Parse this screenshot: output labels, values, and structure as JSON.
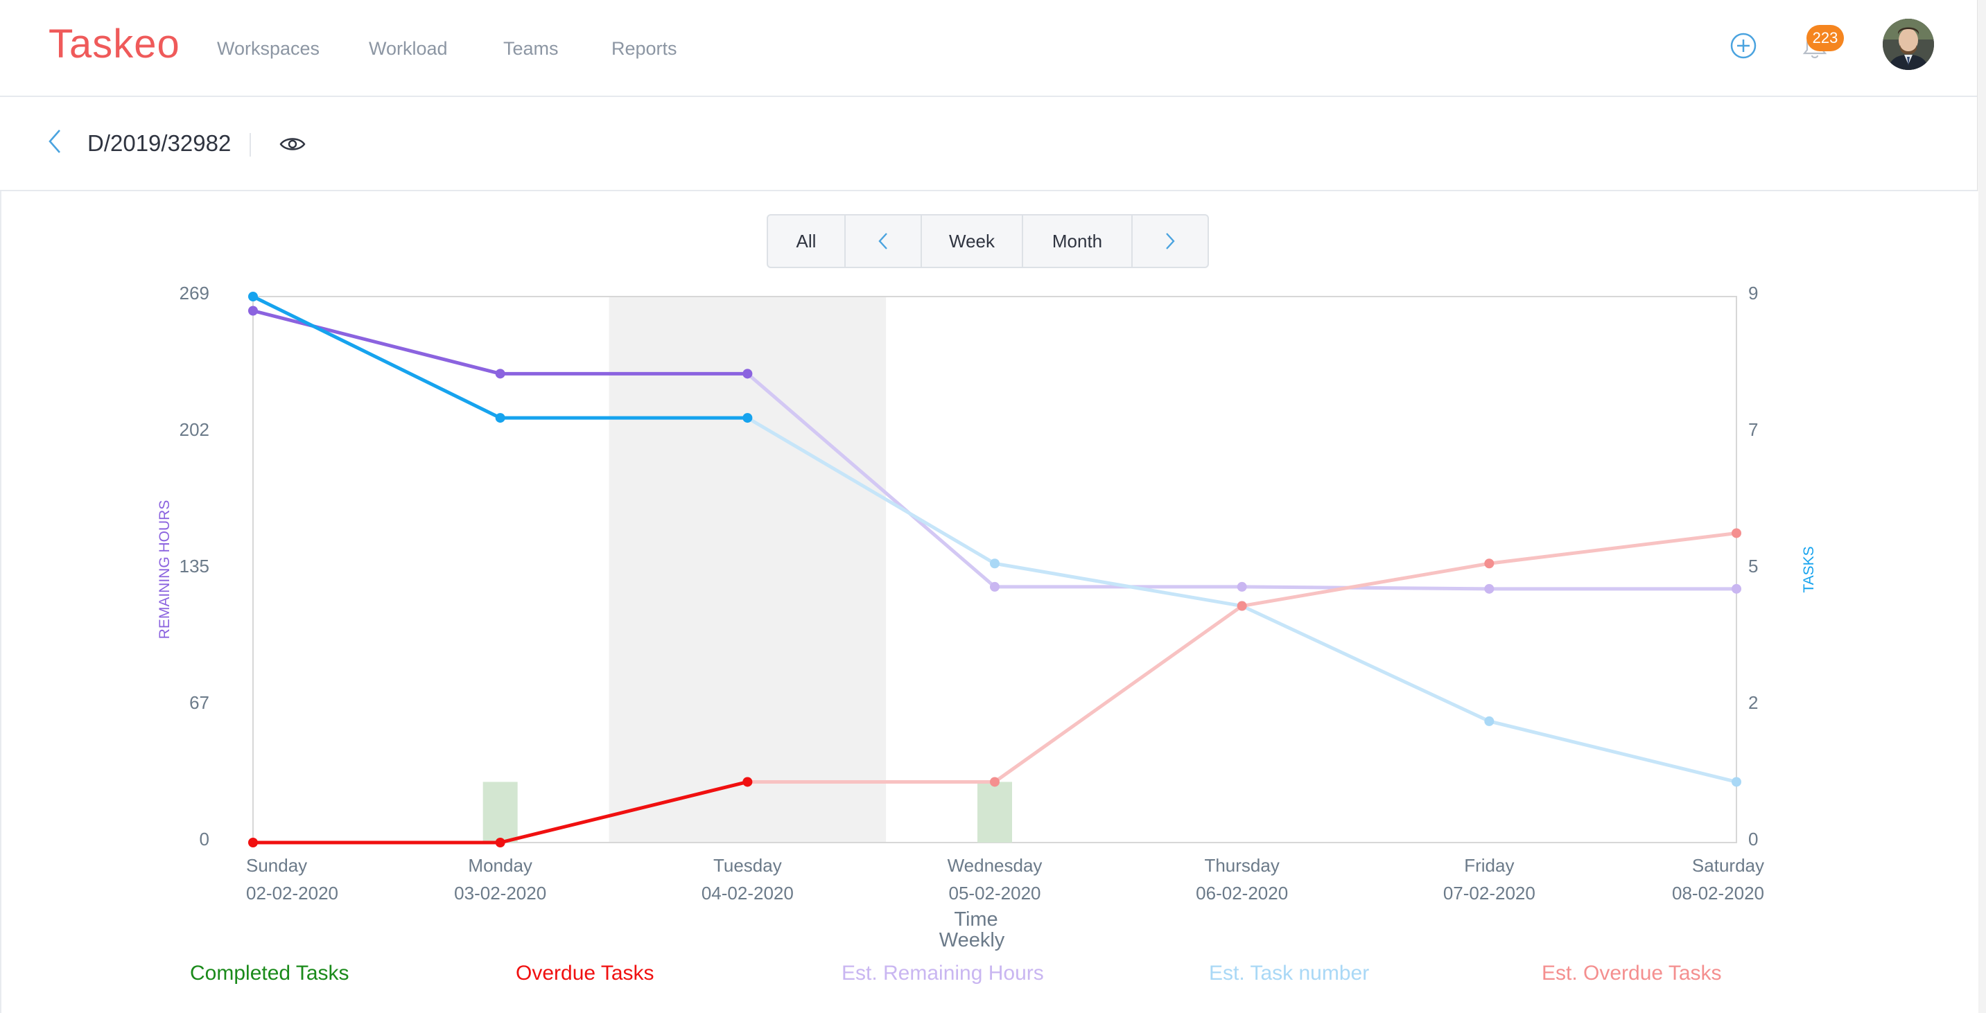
{
  "app": {
    "logo": "Taskeo",
    "nav": [
      {
        "label": "Workspaces"
      },
      {
        "label": "Workload"
      },
      {
        "label": "Teams"
      },
      {
        "label": "Reports"
      }
    ],
    "notifications_count": "223",
    "accent_color": "#4aa3df",
    "brand_color": "#ef5a5a",
    "badge_color": "#f5851f"
  },
  "subheader": {
    "record_id": "D/2019/32982"
  },
  "range_control": {
    "all_label": "All",
    "week_label": "Week",
    "month_label": "Month"
  },
  "chart_data": {
    "type": "line",
    "xlabel": "Time",
    "xlabel_sub": "Weekly",
    "y_left_label": "REMAINING HOURS",
    "y_right_label": "TASKS",
    "y_left_ticks": [
      "269",
      "202",
      "135",
      "67",
      "0"
    ],
    "y_right_ticks": [
      "9",
      "7",
      "5",
      "2",
      "0"
    ],
    "y_left_range": [
      0,
      269
    ],
    "y_right_range": [
      0,
      9
    ],
    "categories": [
      {
        "day": "Sunday",
        "date": "02-02-2020"
      },
      {
        "day": "Monday",
        "date": "03-02-2020"
      },
      {
        "day": "Tuesday",
        "date": "04-02-2020"
      },
      {
        "day": "Wednesday",
        "date": "05-02-2020"
      },
      {
        "day": "Thursday",
        "date": "06-02-2020"
      },
      {
        "day": "Friday",
        "date": "07-02-2020"
      },
      {
        "day": "Saturday",
        "date": "08-02-2020"
      }
    ],
    "highlight_day": "Tuesday",
    "series": [
      {
        "name": "Completed Tasks",
        "kind": "bar",
        "axis": "right",
        "color": "#d3e6d1",
        "legend_color": "#1a8a1a",
        "values": [
          0,
          1,
          0,
          1,
          0,
          0,
          0
        ]
      },
      {
        "name": "Overdue Tasks",
        "kind": "line",
        "axis": "right",
        "color": "#f01010",
        "legend_color": "#f01010",
        "values": [
          0,
          0,
          1,
          null,
          null,
          null,
          null
        ]
      },
      {
        "name": "Remaining Hours",
        "kind": "line",
        "axis": "left",
        "color": "#8b63df",
        "values": [
          262,
          231,
          231,
          null,
          null,
          null,
          null
        ]
      },
      {
        "name": "Task number",
        "kind": "line",
        "axis": "right",
        "color": "#16a3ee",
        "values": [
          9,
          7,
          7,
          null,
          null,
          null,
          null
        ]
      },
      {
        "name": "Est. Remaining Hours",
        "kind": "line",
        "axis": "left",
        "color": "#d3c8f4",
        "legend_color": "#c9b6f1",
        "values": [
          null,
          null,
          231,
          126,
          126,
          125,
          125
        ]
      },
      {
        "name": "Est. Task number",
        "kind": "line",
        "axis": "right",
        "color": "#c6e5f9",
        "legend_color": "#a9d8f6",
        "values": [
          null,
          null,
          7,
          4.6,
          3.9,
          2,
          1
        ]
      },
      {
        "name": "Est. Overdue Tasks",
        "kind": "line",
        "axis": "right",
        "color": "#f8c2c2",
        "legend_color": "#f48f8f",
        "values": [
          null,
          null,
          1,
          1,
          3.9,
          4.6,
          5.1
        ]
      }
    ],
    "legend": [
      "Completed Tasks",
      "Overdue Tasks",
      "Est. Remaining Hours",
      "Est. Task number",
      "Est. Overdue Tasks"
    ]
  }
}
